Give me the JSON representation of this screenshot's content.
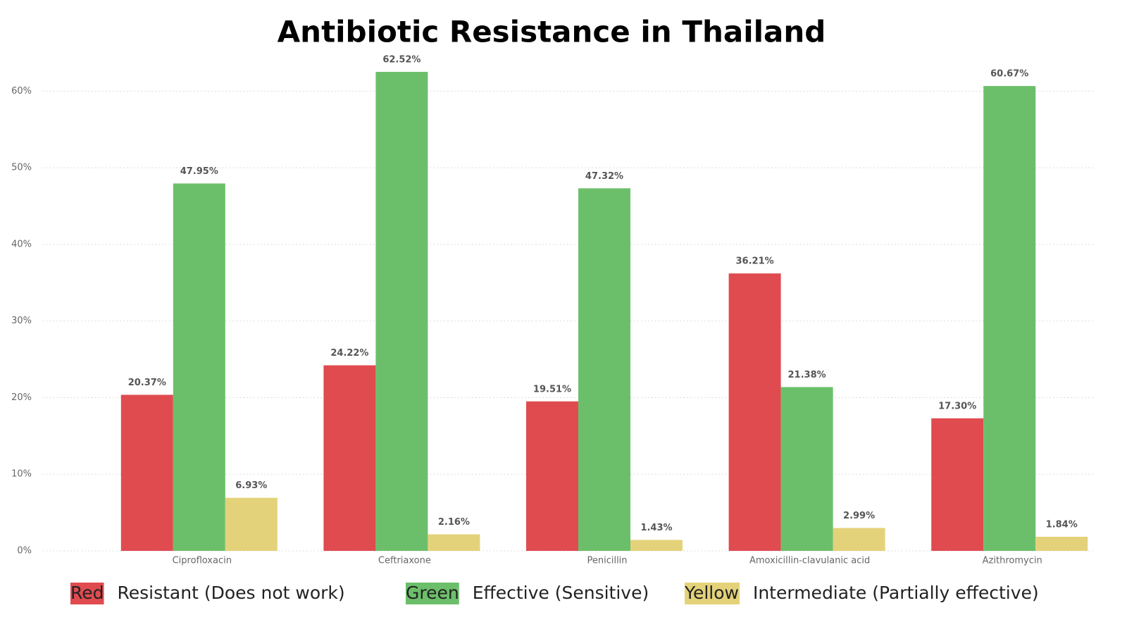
{
  "chart_data": {
    "type": "bar",
    "title": "Antibiotic Resistance in Thailand",
    "categories": [
      "Ciprofloxacin",
      "Ceftriaxone",
      "Penicillin",
      "Amoxicillin-clavulanic acid",
      "Azithromycin"
    ],
    "series": [
      {
        "name": "Resistant (Does not work)",
        "swatch_label": "Red",
        "color": "#e04b50",
        "values": [
          20.37,
          24.22,
          19.51,
          36.21,
          17.3
        ],
        "value_labels": [
          "20.37%",
          "24.22%",
          "19.51%",
          "36.21%",
          "17.30%"
        ]
      },
      {
        "name": "Effective (Sensitive)",
        "swatch_label": "Green",
        "color": "#6cbf6a",
        "values": [
          47.95,
          62.52,
          47.32,
          21.38,
          60.67
        ],
        "value_labels": [
          "47.95%",
          "62.52%",
          "47.32%",
          "21.38%",
          "60.67%"
        ]
      },
      {
        "name": "Intermediate (Partially effective)",
        "swatch_label": "Yellow",
        "color": "#e4d27a",
        "values": [
          6.93,
          2.16,
          1.43,
          2.99,
          1.84
        ],
        "value_labels": [
          "6.93%",
          "2.16%",
          "1.43%",
          "2.99%",
          "1.84%"
        ]
      }
    ],
    "ylim": [
      0,
      65
    ],
    "yticks": [
      {
        "value": 0,
        "label": "0%"
      },
      {
        "value": 10,
        "label": "10%"
      },
      {
        "value": 20,
        "label": "20%"
      },
      {
        "value": 30,
        "label": "30%"
      },
      {
        "value": 40,
        "label": "40%"
      },
      {
        "value": 50,
        "label": "50%"
      },
      {
        "value": 60,
        "label": "60%"
      }
    ],
    "grid": true
  }
}
